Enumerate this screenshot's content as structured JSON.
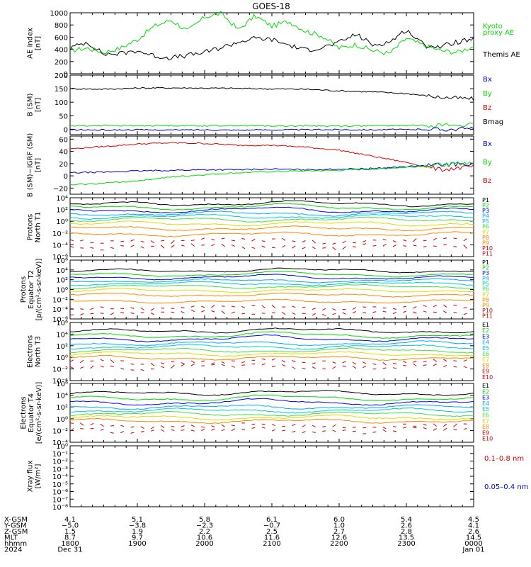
{
  "title": "GOES-18",
  "colors": {
    "black": "#000000",
    "green": "#00dd00",
    "blue": "#0000cc",
    "red": "#dd0000",
    "ch_green": "#00dd00",
    "ch_blue": "#0000ff",
    "ch_cyan": "#00cccc",
    "ch_lblue": "#00aaff",
    "ch_lgreen": "#44dd44",
    "ch_yellow": "#dddd00",
    "ch_orange": "#ff8800",
    "ch_red": "#cc0000"
  },
  "chart_data": [
    {
      "type": "line",
      "ylabel": [
        "AE index",
        "[nT]"
      ],
      "ylim": [
        0,
        1000
      ],
      "yticks": [
        {
          "v": 0,
          "label": "0"
        },
        {
          "v": 200,
          "label": "200"
        },
        {
          "v": 400,
          "label": "400"
        },
        {
          "v": 600,
          "label": "600"
        },
        {
          "v": 800,
          "label": "800"
        },
        {
          "v": 1000,
          "label": "1000"
        }
      ],
      "legend": [
        {
          "label": "Kyoto",
          "color": "green"
        },
        {
          "label": "proxy AE",
          "color": "green"
        },
        {
          "label": "Themis AE",
          "color": "black"
        }
      ],
      "series": [
        {
          "name": "Kyoto proxy AE",
          "color": "green",
          "x": [
            0,
            0.25,
            0.5,
            0.75,
            1,
            1.25,
            1.5,
            1.75,
            2,
            2.25,
            2.5,
            2.75,
            3,
            3.25,
            3.5,
            3.75,
            4,
            4.25,
            4.5,
            4.75,
            5,
            5.25,
            5.5,
            5.75,
            6
          ],
          "values": [
            380,
            420,
            350,
            420,
            560,
            780,
            880,
            700,
            930,
            990,
            720,
            950,
            780,
            860,
            700,
            620,
            420,
            480,
            380,
            330,
            580,
            470,
            380,
            350,
            450
          ]
        },
        {
          "name": "Themis AE",
          "color": "black",
          "x": [
            0,
            0.25,
            0.5,
            0.75,
            1,
            1.25,
            1.5,
            1.75,
            2,
            2.25,
            2.5,
            2.75,
            3,
            3.25,
            3.5,
            3.75,
            4,
            4.25,
            4.5,
            4.75,
            5,
            5.25,
            5.5,
            5.75,
            6
          ],
          "values": [
            420,
            520,
            320,
            330,
            380,
            290,
            260,
            300,
            350,
            430,
            520,
            580,
            560,
            470,
            390,
            430,
            510,
            650,
            470,
            520,
            720,
            480,
            440,
            520,
            560
          ]
        }
      ]
    },
    {
      "type": "line",
      "ylabel": [
        "B (SM)",
        "[nT]"
      ],
      "ylim": [
        -20,
        200
      ],
      "yticks": [
        {
          "v": 0,
          "label": "0"
        },
        {
          "v": 50,
          "label": "50"
        },
        {
          "v": 100,
          "label": "100"
        },
        {
          "v": 150,
          "label": "150"
        },
        {
          "v": 200,
          "label": "200"
        }
      ],
      "legend": [
        {
          "label": "Bx",
          "color": "blue"
        },
        {
          "label": "By",
          "color": "green"
        },
        {
          "label": "Bz",
          "color": "red"
        },
        {
          "label": "Bmag",
          "color": "black"
        }
      ],
      "series": [
        {
          "name": "Bmag",
          "color": "black",
          "x": [
            0,
            0.5,
            1,
            1.5,
            2,
            2.5,
            3,
            3.5,
            4,
            4.5,
            5,
            5.5,
            6
          ],
          "values": [
            150,
            148,
            152,
            153,
            152,
            151,
            149,
            148,
            142,
            138,
            132,
            118,
            112
          ]
        },
        {
          "name": "By",
          "color": "green",
          "x": [
            0,
            0.5,
            1,
            1.5,
            2,
            2.5,
            3,
            3.5,
            4,
            4.5,
            5,
            5.5,
            6
          ],
          "values": [
            12,
            14,
            13,
            14,
            13,
            14,
            12,
            13,
            12,
            13,
            14,
            15,
            16
          ]
        },
        {
          "name": "Bx",
          "color": "blue",
          "x": [
            0,
            0.5,
            1,
            1.5,
            2,
            2.5,
            3,
            3.5,
            4,
            4.5,
            5,
            5.5,
            6
          ],
          "values": [
            -2,
            -3,
            -2,
            -3,
            -2,
            -3,
            -2,
            -2,
            -1,
            -2,
            -1,
            0,
            2
          ]
        }
      ]
    },
    {
      "type": "line",
      "ylabel": [
        "B (SM)−IGRF (SM)",
        "[nT]"
      ],
      "ylim": [
        -30,
        65
      ],
      "yticks": [
        {
          "v": -20,
          "label": "−20"
        },
        {
          "v": 0,
          "label": "0"
        },
        {
          "v": 20,
          "label": "20"
        },
        {
          "v": 40,
          "label": "40"
        },
        {
          "v": 60,
          "label": "60"
        }
      ],
      "legend": [
        {
          "label": "Bx",
          "color": "blue"
        },
        {
          "label": "By",
          "color": "green"
        },
        {
          "label": "Bz",
          "color": "red"
        }
      ],
      "series": [
        {
          "name": "Bz",
          "color": "red",
          "x": [
            0,
            0.5,
            1,
            1.5,
            2,
            2.5,
            3,
            3.5,
            4,
            4.5,
            5,
            5.5,
            6
          ],
          "values": [
            44,
            48,
            52,
            54,
            53,
            50,
            50,
            47,
            42,
            32,
            22,
            10,
            15
          ]
        },
        {
          "name": "Bx",
          "color": "blue",
          "x": [
            0,
            0.5,
            1,
            1.5,
            2,
            2.5,
            3,
            3.5,
            4,
            4.5,
            5,
            5.5,
            6
          ],
          "values": [
            5,
            6,
            8,
            9,
            10,
            10,
            11,
            10,
            11,
            12,
            15,
            18,
            20
          ]
        },
        {
          "name": "By",
          "color": "green",
          "x": [
            0,
            0.5,
            1,
            1.5,
            2,
            2.5,
            3,
            3.5,
            4,
            4.5,
            5,
            5.5,
            6
          ],
          "values": [
            -15,
            -12,
            -8,
            -2,
            2,
            5,
            7,
            8,
            9,
            11,
            14,
            18,
            22
          ]
        }
      ]
    },
    {
      "type": "line",
      "log": true,
      "ylabel": [
        "Protons",
        "North T1"
      ],
      "ylim": [
        -6,
        4
      ],
      "yticks": [
        {
          "v": 4,
          "label": "10⁴"
        },
        {
          "v": 2,
          "label": "10²"
        },
        {
          "v": 0,
          "label": "10⁰"
        },
        {
          "v": -2,
          "label": "10⁻²"
        },
        {
          "v": -4,
          "label": "10⁻⁴"
        },
        {
          "v": -6,
          "label": "10⁻⁶"
        }
      ],
      "channels": [
        "P1",
        "P2",
        "P3",
        "P4",
        "P5",
        "P6",
        "P7",
        "P8",
        "P9",
        "P10",
        "P11"
      ],
      "channel_levels": [
        2.9,
        2.3,
        1.8,
        1.3,
        0.8,
        0.3,
        -0.4,
        -1.2,
        -2.2,
        -3.3,
        -4.3
      ],
      "channel_colors": [
        "black",
        "ch_green",
        "ch_blue",
        "ch_lblue",
        "ch_cyan",
        "ch_lgreen",
        "ch_yellow",
        "ch_orange",
        "ch_orange",
        "ch_red",
        "ch_red"
      ]
    },
    {
      "type": "line",
      "log": true,
      "ylabel": [
        "Protons",
        "Equator T2",
        "[p/(cm²-s-sr-keV)]"
      ],
      "ylim": [
        -6,
        6
      ],
      "yticks": [
        {
          "v": 6,
          "label": "10⁶"
        },
        {
          "v": 4,
          "label": "10⁴"
        },
        {
          "v": 2,
          "label": "10²"
        },
        {
          "v": 0,
          "label": "10⁰"
        },
        {
          "v": -2,
          "label": "10⁻²"
        },
        {
          "v": -4,
          "label": "10⁻⁴"
        },
        {
          "v": -6,
          "label": "10⁻⁶"
        }
      ],
      "channels": [
        "P1",
        "P2",
        "P3",
        "P4",
        "P5",
        "P6",
        "P7",
        "P8",
        "P9",
        "P10",
        "P11"
      ],
      "channel_levels": [
        3.8,
        3.0,
        2.4,
        1.8,
        1.2,
        0.6,
        -0.2,
        -1.1,
        -2.4,
        -3.7,
        -4.8
      ],
      "channel_colors": [
        "black",
        "ch_green",
        "ch_blue",
        "ch_lblue",
        "ch_cyan",
        "ch_lgreen",
        "ch_yellow",
        "ch_orange",
        "ch_orange",
        "ch_red",
        "ch_red"
      ]
    },
    {
      "type": "line",
      "log": true,
      "ylabel": [
        "Electrons",
        "North T3"
      ],
      "ylim": [
        -4,
        6
      ],
      "yticks": [
        {
          "v": 6,
          "label": "10⁶"
        },
        {
          "v": 4,
          "label": "10⁴"
        },
        {
          "v": 2,
          "label": "10²"
        },
        {
          "v": 0,
          "label": "10⁰"
        },
        {
          "v": -2,
          "label": "10⁻²"
        },
        {
          "v": -4,
          "label": "10⁻⁴"
        }
      ],
      "channels": [
        "E1",
        "E2",
        "E3",
        "E4",
        "E5",
        "E6",
        "E7",
        "E8",
        "E9",
        "E10"
      ],
      "channel_levels": [
        4.5,
        3.7,
        3.1,
        2.4,
        1.8,
        1.2,
        0.6,
        -0.1,
        -0.8,
        -1.6
      ],
      "channel_colors": [
        "black",
        "ch_green",
        "ch_blue",
        "ch_lblue",
        "ch_cyan",
        "ch_lgreen",
        "ch_yellow",
        "ch_orange",
        "ch_red",
        "ch_red"
      ]
    },
    {
      "type": "line",
      "log": true,
      "ylabel": [
        "Electrons",
        "Equator T4",
        "[e/(cm²-s-sr-keV)]"
      ],
      "ylim": [
        -4,
        6
      ],
      "yticks": [
        {
          "v": 6,
          "label": "10⁶"
        },
        {
          "v": 4,
          "label": "10⁴"
        },
        {
          "v": 2,
          "label": "10²"
        },
        {
          "v": 0,
          "label": "10⁰"
        },
        {
          "v": -2,
          "label": "10⁻²"
        },
        {
          "v": -4,
          "label": "10⁻⁴"
        }
      ],
      "channels": [
        "E1",
        "E2",
        "E3",
        "E4",
        "E5",
        "E6",
        "E7",
        "E8",
        "E9",
        "E10"
      ],
      "channel_levels": [
        4.3,
        3.4,
        2.7,
        2.0,
        1.4,
        0.8,
        0.2,
        -0.4,
        -1.2,
        -2.0
      ],
      "channel_colors": [
        "black",
        "ch_green",
        "ch_blue",
        "ch_lblue",
        "ch_cyan",
        "ch_lgreen",
        "ch_yellow",
        "ch_orange",
        "ch_red",
        "ch_red"
      ]
    },
    {
      "type": "line",
      "log": true,
      "ylabel": [
        "Xray flux",
        "[W/m²]"
      ],
      "ylim": [
        -8,
        0
      ],
      "yticks": [
        {
          "v": 0,
          "label": "10⁰"
        },
        {
          "v": -1,
          "label": "10⁻¹"
        },
        {
          "v": -2,
          "label": "10⁻²"
        },
        {
          "v": -3,
          "label": "10⁻³"
        },
        {
          "v": -4,
          "label": "10⁻⁴"
        },
        {
          "v": -5,
          "label": "10⁻⁵"
        },
        {
          "v": -6,
          "label": "10⁻⁶"
        },
        {
          "v": -7,
          "label": "10⁻⁷"
        },
        {
          "v": -8,
          "label": "10⁻⁸"
        }
      ],
      "legend": [
        {
          "label": "0.1–0.8 nm",
          "color": "red"
        },
        {
          "label": "0.05–0.4 nm",
          "color": "blue"
        }
      ],
      "series": []
    }
  ],
  "ephemeris": {
    "row_labels": [
      "X-GSM",
      "Y-GSM",
      "Z-GSM",
      "MLT",
      "hhmm",
      "2024"
    ],
    "columns": [
      [
        "4.1",
        "−5.0",
        "1.5",
        "8.7",
        "1800",
        "Dec 31"
      ],
      [
        "5.1",
        "−3.8",
        "1.9",
        "9.7",
        "1900",
        ""
      ],
      [
        "5.8",
        "−2.3",
        "2.2",
        "10.6",
        "2000",
        ""
      ],
      [
        "6.1",
        "−0.7",
        "2.5",
        "11.6",
        "2100",
        ""
      ],
      [
        "6.0",
        "1.0",
        "2.7",
        "12.6",
        "2200",
        ""
      ],
      [
        "5.4",
        "2.6",
        "2.8",
        "13.5",
        "2300",
        ""
      ],
      [
        "4.5",
        "4.1",
        "2.6",
        "14.5",
        "0000",
        "Jan 01"
      ]
    ]
  }
}
